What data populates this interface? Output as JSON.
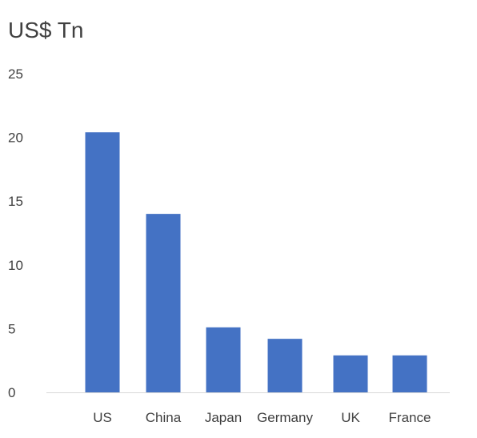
{
  "chart_data": {
    "type": "bar",
    "title": "US$ Tn",
    "categories": [
      "US",
      "China",
      "Japan",
      "Germany",
      "UK",
      "France"
    ],
    "values": [
      20.4,
      14.0,
      5.1,
      4.2,
      2.9,
      2.9
    ],
    "ylim": [
      0,
      25
    ],
    "yticks": [
      0,
      5,
      10,
      15,
      20,
      25
    ],
    "grid": false,
    "legend": "none",
    "colors": {
      "bar": "#4472C4",
      "axis_line": "#D9D9D9",
      "text": "#404040"
    }
  }
}
